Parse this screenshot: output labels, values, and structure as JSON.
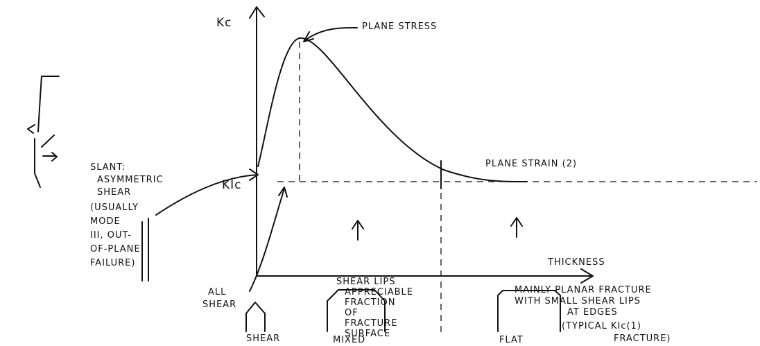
{
  "axes": {
    "y_label": "Kc",
    "x_label": "THICKNESS",
    "kic_label": "KIc"
  },
  "annotations": {
    "plane_stress": "PLANE STRESS",
    "plane_strain": "PLANE STRAIN (2)"
  },
  "slant_note": {
    "lines": [
      "SLANT:",
      "ASYMMETRIC",
      "SHEAR",
      "(USUALLY",
      "MODE",
      "III, OUT-",
      "OF-PLANE",
      "FAILURE)"
    ]
  },
  "regions": [
    {
      "note": [
        "ALL",
        "SHEAR"
      ],
      "label": "SHEAR"
    },
    {
      "note": [
        "SHEAR LIPS",
        "APPRECIABLE",
        "FRACTION",
        "OF",
        "FRACTURE",
        "SURFACE"
      ],
      "label": "MIXED"
    },
    {
      "note": [
        "MAINLY PLANAR FRACTURE",
        "WITH SMALL SHEAR LIPS",
        "AT EDGES",
        "(TYPICAL KIc(1)",
        "FRACTURE)"
      ],
      "label": "FLAT"
    }
  ]
}
